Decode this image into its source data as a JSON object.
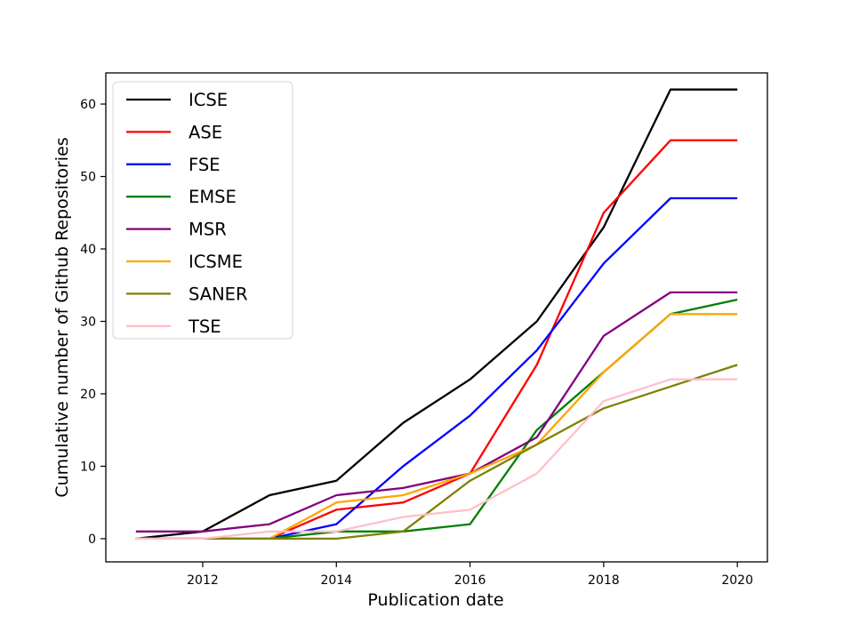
{
  "chart_data": {
    "type": "line",
    "title": "",
    "xlabel": "Publication date",
    "ylabel": "Cumulative number of Github Repositories",
    "x": [
      2011,
      2012,
      2013,
      2014,
      2015,
      2016,
      2017,
      2018,
      2019,
      2020
    ],
    "series": [
      {
        "name": "ICSE",
        "color": "#000000",
        "values": [
          0,
          1,
          6,
          8,
          16,
          22,
          30,
          43,
          62,
          62
        ]
      },
      {
        "name": "ASE",
        "color": "#ff0000",
        "values": [
          0,
          0,
          0,
          4,
          5,
          9,
          24,
          45,
          55,
          55
        ]
      },
      {
        "name": "FSE",
        "color": "#0000ff",
        "values": [
          0,
          0,
          0,
          2,
          10,
          17,
          26,
          38,
          47,
          47
        ]
      },
      {
        "name": "EMSE",
        "color": "#008000",
        "values": [
          0,
          0,
          0,
          1,
          1,
          2,
          15,
          23,
          31,
          33
        ]
      },
      {
        "name": "MSR",
        "color": "#800080",
        "values": [
          1,
          1,
          2,
          6,
          7,
          9,
          14,
          28,
          34,
          34
        ]
      },
      {
        "name": "ICSME",
        "color": "#ffa500",
        "values": [
          0,
          0,
          0,
          5,
          6,
          9,
          13,
          23,
          31,
          31
        ]
      },
      {
        "name": "SANER",
        "color": "#808000",
        "values": [
          0,
          0,
          0,
          0,
          1,
          8,
          13,
          18,
          21,
          24
        ]
      },
      {
        "name": "TSE",
        "color": "#ffc0cb",
        "values": [
          0,
          0,
          1,
          1,
          3,
          4,
          9,
          19,
          22,
          22
        ]
      }
    ],
    "xticks": [
      2012,
      2014,
      2016,
      2018,
      2020
    ],
    "yticks": [
      0,
      10,
      20,
      30,
      40,
      50,
      60
    ],
    "xlim": [
      2010.55,
      2020.45
    ],
    "ylim": [
      -3.2,
      64.3
    ],
    "grid": false,
    "legend_position": "upper left",
    "axis_color": "#000000",
    "background_color": "#ffffff",
    "legend_border_color": "#d4d4d4"
  }
}
